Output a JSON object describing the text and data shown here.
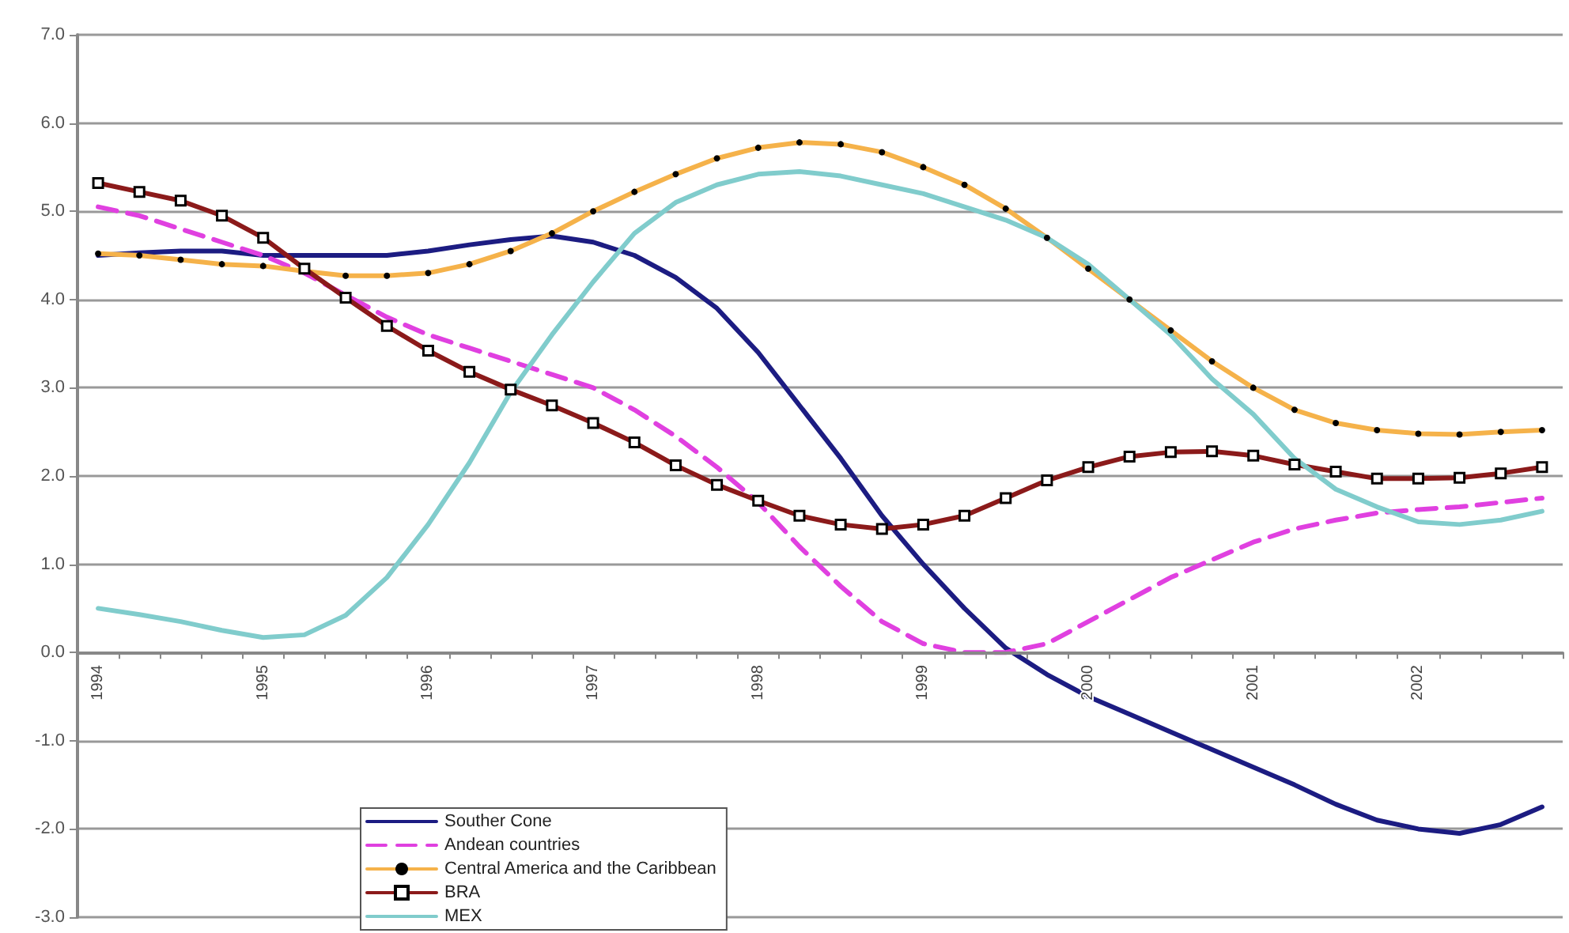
{
  "chart_data": {
    "type": "line",
    "categories": [
      "1994",
      null,
      null,
      null,
      "1995",
      null,
      null,
      null,
      "1996",
      null,
      null,
      null,
      "1997",
      null,
      null,
      null,
      "1998",
      null,
      null,
      null,
      "1999",
      null,
      null,
      null,
      "2000",
      null,
      null,
      null,
      "2001",
      null,
      null,
      null,
      "2002",
      null,
      null,
      null
    ],
    "series": [
      {
        "name": "Souther Cone",
        "color": "#1c1c82",
        "marker": "none",
        "line_style": "solid",
        "values": [
          4.5,
          4.53,
          4.55,
          4.55,
          4.5,
          4.5,
          4.5,
          4.5,
          4.55,
          4.62,
          4.68,
          4.72,
          4.65,
          4.5,
          4.25,
          3.9,
          3.4,
          2.8,
          2.2,
          1.55,
          1.0,
          0.5,
          0.05,
          -0.25,
          -0.5,
          -0.7,
          -0.9,
          -1.1,
          -1.3,
          -1.5,
          -1.72,
          -1.9,
          -2.0,
          -2.05,
          -1.95,
          -1.75
        ]
      },
      {
        "name": "Andean countries",
        "color": "#e040e0",
        "marker": "none",
        "line_style": "dashed",
        "values": [
          5.05,
          4.95,
          4.8,
          4.65,
          4.5,
          4.3,
          4.05,
          3.8,
          3.6,
          3.45,
          3.3,
          3.15,
          3.0,
          2.75,
          2.45,
          2.1,
          1.7,
          1.2,
          0.75,
          0.35,
          0.1,
          0.0,
          0.0,
          0.1,
          0.35,
          0.6,
          0.85,
          1.05,
          1.25,
          1.4,
          1.5,
          1.58,
          1.62,
          1.65,
          1.7,
          1.75
        ]
      },
      {
        "name": "Central America and the Caribbean",
        "color": "#f5b24a",
        "marker": "circle",
        "line_style": "solid",
        "values": [
          4.52,
          4.5,
          4.45,
          4.4,
          4.38,
          4.32,
          4.27,
          4.27,
          4.3,
          4.4,
          4.55,
          4.75,
          5.0,
          5.22,
          5.42,
          5.6,
          5.72,
          5.78,
          5.76,
          5.67,
          5.5,
          5.3,
          5.03,
          4.7,
          4.35,
          4.0,
          3.65,
          3.3,
          3.0,
          2.75,
          2.6,
          2.52,
          2.48,
          2.47,
          2.5,
          2.52
        ]
      },
      {
        "name": "BRA",
        "color": "#8b1a1a",
        "marker": "square",
        "line_style": "solid",
        "values": [
          5.32,
          5.22,
          5.12,
          4.95,
          4.7,
          4.35,
          4.02,
          3.7,
          3.42,
          3.18,
          2.98,
          2.8,
          2.6,
          2.38,
          2.12,
          1.9,
          1.72,
          1.55,
          1.45,
          1.4,
          1.45,
          1.55,
          1.75,
          1.95,
          2.1,
          2.22,
          2.27,
          2.28,
          2.23,
          2.13,
          2.05,
          1.97,
          1.97,
          1.98,
          2.03,
          2.1
        ]
      },
      {
        "name": "MEX",
        "color": "#80cccc",
        "marker": "none",
        "line_style": "solid",
        "values": [
          0.5,
          0.43,
          0.35,
          0.25,
          0.17,
          0.2,
          0.42,
          0.85,
          1.45,
          2.15,
          2.95,
          3.6,
          4.2,
          4.75,
          5.1,
          5.3,
          5.42,
          5.45,
          5.4,
          5.3,
          5.2,
          5.05,
          4.9,
          4.7,
          4.4,
          4.0,
          3.6,
          3.1,
          2.7,
          2.2,
          1.85,
          1.65,
          1.48,
          1.45,
          1.5,
          1.6
        ]
      }
    ],
    "ylim": [
      -3,
      7
    ],
    "yticks": [
      {
        "value": -3,
        "label": "-3.0"
      },
      {
        "value": -2,
        "label": "-2.0"
      },
      {
        "value": -1,
        "label": "-1.0"
      },
      {
        "value": 0,
        "label": "0.0"
      },
      {
        "value": 1,
        "label": "1.0"
      },
      {
        "value": 2,
        "label": "2.0"
      },
      {
        "value": 3,
        "label": "3.0"
      },
      {
        "value": 4,
        "label": "4.0"
      },
      {
        "value": 5,
        "label": "5.0"
      },
      {
        "value": 6,
        "label": "6.0"
      },
      {
        "value": 7,
        "label": "7.0"
      }
    ],
    "grid": "y",
    "legend": "bottom left"
  }
}
